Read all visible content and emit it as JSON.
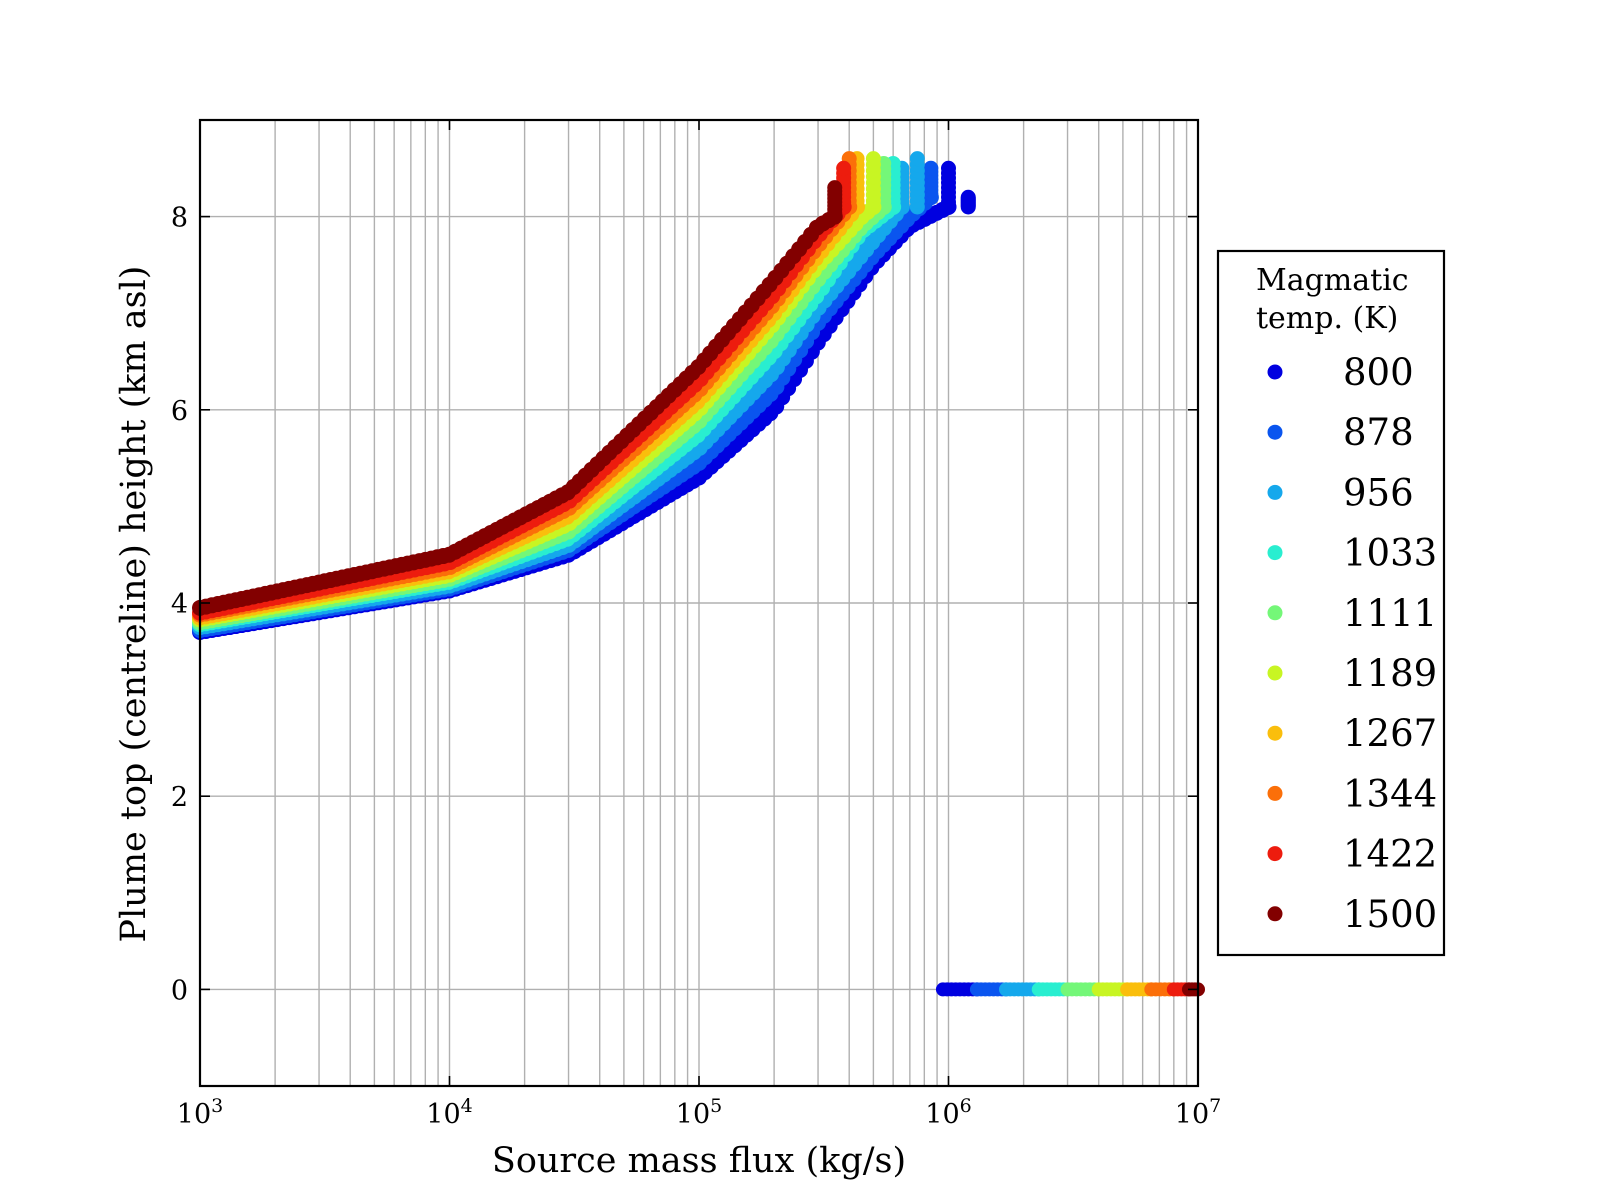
{
  "chart_data": {
    "type": "scatter",
    "title": "",
    "xlabel": "Source mass flux (kg/s)",
    "ylabel": "Plume top (centreline) height (km asl)",
    "xscale": "log",
    "xlim": [
      1000,
      10000000
    ],
    "ylim": [
      -1,
      9
    ],
    "grid": true,
    "x_ticks": [
      {
        "base": "10",
        "exp": "3"
      },
      {
        "base": "10",
        "exp": "4"
      },
      {
        "base": "10",
        "exp": "5"
      },
      {
        "base": "10",
        "exp": "6"
      },
      {
        "base": "10",
        "exp": "7"
      }
    ],
    "y_ticks": [
      "0",
      "2",
      "4",
      "6",
      "8"
    ],
    "y_tick_values": [
      0,
      2,
      4,
      6,
      8
    ],
    "legend": {
      "title_line1": "Magmatic",
      "title_line2": "temp. (K)",
      "placement": "outside-right"
    },
    "series": [
      {
        "name": "800",
        "color": "#0000e0",
        "rising": [
          [
            1000,
            3.7
          ],
          [
            10000,
            4.13
          ],
          [
            30000,
            4.5
          ],
          [
            100000,
            5.3
          ],
          [
            200000,
            6.0
          ],
          [
            300000,
            6.7
          ],
          [
            500000,
            7.5
          ],
          [
            700000,
            7.9
          ],
          [
            1000000,
            8.1
          ]
        ],
        "top": [
          [
            1000000,
            8.5
          ],
          [
            1200000,
            8.2
          ]
        ],
        "zero": [
          950000,
          1300000
        ]
      },
      {
        "name": "878",
        "color": "#0a55ef",
        "rising": [
          [
            1000,
            3.72
          ],
          [
            10000,
            4.15
          ],
          [
            30000,
            4.55
          ],
          [
            100000,
            5.45
          ],
          [
            200000,
            6.2
          ],
          [
            300000,
            6.9
          ],
          [
            500000,
            7.6
          ],
          [
            700000,
            8.0
          ],
          [
            850000,
            8.2
          ]
        ],
        "top": [
          [
            850000,
            8.5
          ]
        ],
        "zero": [
          1300000,
          1700000
        ]
      },
      {
        "name": "956",
        "color": "#15a8ec",
        "rising": [
          [
            1000,
            3.75
          ],
          [
            10000,
            4.18
          ],
          [
            30000,
            4.6
          ],
          [
            100000,
            5.6
          ],
          [
            200000,
            6.4
          ],
          [
            300000,
            7.05
          ],
          [
            500000,
            7.75
          ],
          [
            650000,
            8.1
          ]
        ],
        "top": [
          [
            650000,
            8.5
          ],
          [
            750000,
            8.6
          ]
        ],
        "zero": [
          1700000,
          2300000
        ]
      },
      {
        "name": "1033",
        "color": "#29eed0",
        "rising": [
          [
            1000,
            3.78
          ],
          [
            10000,
            4.22
          ],
          [
            30000,
            4.67
          ],
          [
            100000,
            5.75
          ],
          [
            200000,
            6.6
          ],
          [
            300000,
            7.2
          ],
          [
            450000,
            7.85
          ],
          [
            600000,
            8.1
          ]
        ],
        "top": [
          [
            600000,
            8.55
          ]
        ],
        "zero": [
          2300000,
          3000000
        ]
      },
      {
        "name": "1111",
        "color": "#74f778",
        "rising": [
          [
            1000,
            3.8
          ],
          [
            10000,
            4.25
          ],
          [
            30000,
            4.74
          ],
          [
            100000,
            5.88
          ],
          [
            200000,
            6.75
          ],
          [
            300000,
            7.35
          ],
          [
            450000,
            7.9
          ],
          [
            550000,
            8.1
          ]
        ],
        "top": [
          [
            550000,
            8.55
          ]
        ],
        "zero": [
          3000000,
          4000000
        ]
      },
      {
        "name": "1189",
        "color": "#c8f523",
        "rising": [
          [
            1000,
            3.83
          ],
          [
            10000,
            4.29
          ],
          [
            30000,
            4.82
          ],
          [
            100000,
            6.0
          ],
          [
            200000,
            6.9
          ],
          [
            300000,
            7.5
          ],
          [
            450000,
            8.0
          ],
          [
            500000,
            8.1
          ]
        ],
        "top": [
          [
            500000,
            8.6
          ]
        ],
        "zero": [
          4000000,
          5200000
        ]
      },
      {
        "name": "1267",
        "color": "#fabe0c",
        "rising": [
          [
            1000,
            3.85
          ],
          [
            10000,
            4.33
          ],
          [
            30000,
            4.9
          ],
          [
            100000,
            6.1
          ],
          [
            200000,
            7.0
          ],
          [
            300000,
            7.6
          ],
          [
            430000,
            8.1
          ]
        ],
        "top": [
          [
            430000,
            8.6
          ]
        ],
        "zero": [
          5200000,
          6500000
        ]
      },
      {
        "name": "1344",
        "color": "#fb6f09",
        "rising": [
          [
            1000,
            3.88
          ],
          [
            10000,
            4.37
          ],
          [
            30000,
            4.98
          ],
          [
            100000,
            6.2
          ],
          [
            200000,
            7.1
          ],
          [
            300000,
            7.7
          ],
          [
            400000,
            8.1
          ]
        ],
        "top": [
          [
            400000,
            8.6
          ]
        ],
        "zero": [
          6500000,
          8000000
        ]
      },
      {
        "name": "1422",
        "color": "#ed1c0e",
        "rising": [
          [
            1000,
            3.9
          ],
          [
            10000,
            4.42
          ],
          [
            30000,
            5.05
          ],
          [
            100000,
            6.3
          ],
          [
            200000,
            7.2
          ],
          [
            300000,
            7.8
          ],
          [
            380000,
            8.1
          ]
        ],
        "top": [
          [
            380000,
            8.5
          ]
        ],
        "zero": [
          8000000,
          9200000
        ]
      },
      {
        "name": "1500",
        "color": "#820000",
        "rising": [
          [
            1000,
            3.95
          ],
          [
            10000,
            4.5
          ],
          [
            30000,
            5.15
          ],
          [
            100000,
            6.45
          ],
          [
            200000,
            7.35
          ],
          [
            300000,
            7.9
          ],
          [
            350000,
            8.0
          ]
        ],
        "top": [
          [
            350000,
            8.3
          ]
        ],
        "zero": [
          9200000,
          10000000
        ]
      }
    ]
  }
}
